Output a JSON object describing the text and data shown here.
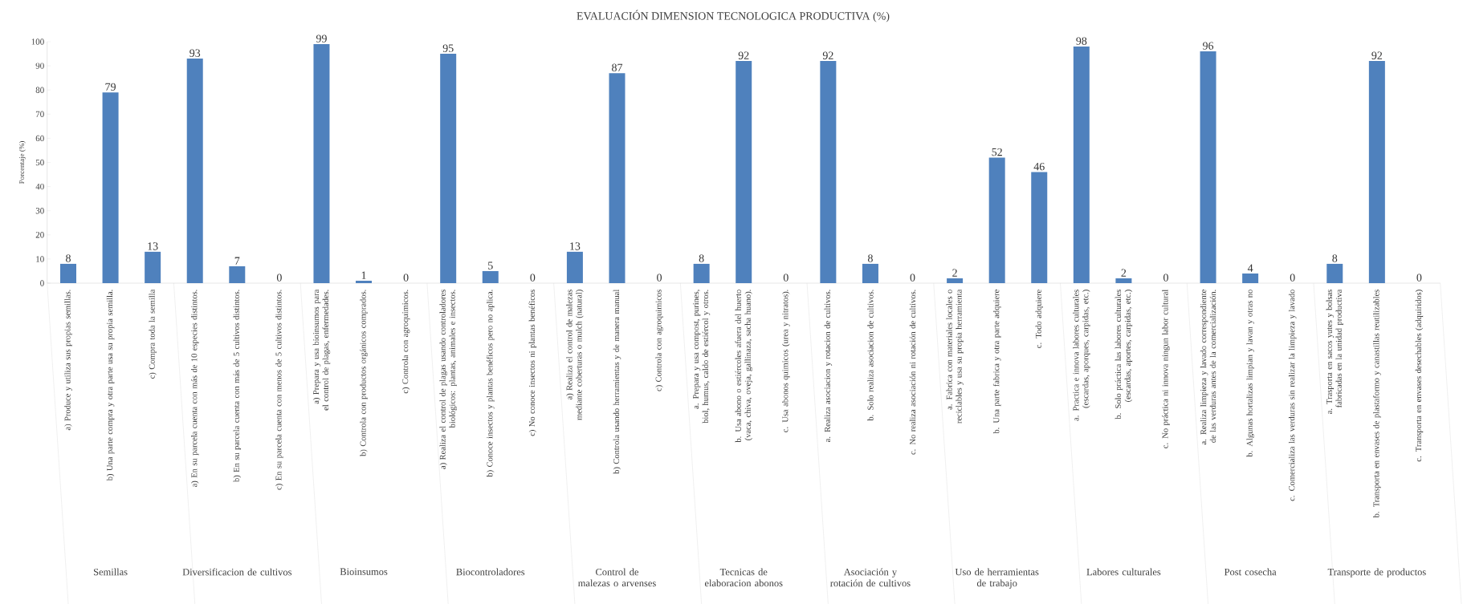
{
  "chart_data": {
    "type": "bar",
    "title": "EVALUACIÓN DIMENSION TECNOLOGICA PRODUCTIVA (%)",
    "ylabel": "Porcentaje (%)",
    "categories": [
      "a) Produce y utiliza sus propias semillas.",
      "b) Una parte compra y otra parte usa su propia semilla.",
      "c) Compra toda la semilla",
      "a) En su parcela cuenta con más de 10 especies distintos.",
      "b) En su parcela cuenta con más de 5 cultivos distintos.",
      "c) En su parcela cuenta con menos de 5 cultivos distintos.",
      "a) Prepara y usa bioinsumos para el control de plagas, enfermedades.",
      "b) Controla con productos orgánicos comprados.",
      "c) Controla con agroquimicos.",
      "a) Realiza el control de plagas usando controladores biológicos: plantas, animales e insectos.",
      "b) Conoce insectos y plantas benéficos pero no aplica.",
      "c) No conoce insectos ni plantas benéficos",
      "a) Realiza el control de malezas mediante coberturas o mulch (natural)",
      "b) Controla usando herramientas y de manera manual",
      "c) Controla con agroquimicos",
      "a. Prepara y usa compost, purines, biol, humus, caldo de estiércol y otros.",
      "b. Usa abono o estiércoles afuera del huerto (vaca, chiva, oveja, gallinaza, sacha huano).",
      "c. Usa abonos quimicos (urea y nitratos).",
      "a. Realiza asociacion y rotacion de cultivos.",
      "b. Solo realiza asociacion de cultivos.",
      "c. No realiza asociación ni rotación de cultivos.",
      "a. Fabrica con materiales locales o reciclables y usa su propia herramienta",
      "b. Una parte fabrica y otra parte adquiere",
      "c. Todo adquiere",
      "a. Practica e innova labores culturales (escardas, aporques, carpidas, etc.)",
      "b. Solo práctica las labores culturales (escardas, aportes, carpidas, etc.)",
      "c. No práctica ni innova ningun labor cultural",
      "a. Realiza limpieza y lavado correspondiente de las verduras antes de la comercialización.",
      "b. Algunas hortalizas limpian y lavan y otras no",
      "c. Comercializa las verduras sin realizar la limpieza y lavado",
      "a. Trasporta en sacos yutes y bolsas fabricadas en la unidad productiva",
      "b. Transporta en envases de plastaformo y canastillas reutilizables",
      "c. Transporta en envases desechables (adquiridos)"
    ],
    "values": [
      8,
      79,
      13,
      93,
      7,
      0,
      99,
      1,
      0,
      95,
      5,
      0,
      13,
      87,
      0,
      8,
      92,
      0,
      92,
      8,
      0,
      2,
      52,
      46,
      98,
      2,
      0,
      96,
      4,
      0,
      8,
      92,
      0
    ],
    "color": "#4f81bd",
    "data_labels": true,
    "ylim": [
      0,
      100
    ],
    "yticks": [
      0,
      10,
      20,
      30,
      40,
      50,
      60,
      70,
      80,
      90,
      100
    ],
    "grid": false,
    "annotations": [
      "Semillas",
      "Diversificacion de cultivos",
      "Bioinsumos",
      "Biocontroladores",
      "Control de malezas o arvenses",
      "Tecnicas de elaboracion abonos",
      "Asociación y rotación de cultivos",
      "Uso de herramientas de trabajo",
      "Labores culturales",
      "Post cosecha",
      "Transporte de productos"
    ]
  }
}
